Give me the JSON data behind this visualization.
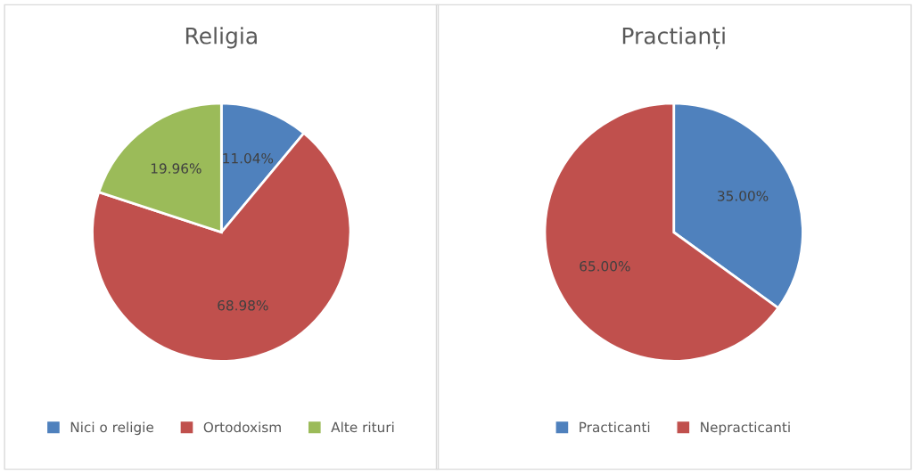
{
  "chart_data": [
    {
      "type": "pie",
      "title": "Religia",
      "categories": [
        "Nici o religie",
        "Ortodoxism",
        "Alte rituri"
      ],
      "values": [
        11.04,
        68.98,
        19.96
      ],
      "colors": [
        "#4f81bd",
        "#c0504d",
        "#9bbb59"
      ],
      "value_labels": [
        "11.04%",
        "68.98%",
        "19.96%"
      ],
      "legend": "bottom"
    },
    {
      "type": "pie",
      "title": "Practianți",
      "categories": [
        "Practicanti",
        "Nepracticanti"
      ],
      "values": [
        35,
        65
      ],
      "colors": [
        "#4f81bd",
        "#c0504d"
      ],
      "value_labels": [
        "35.00%",
        "65.00%"
      ],
      "legend": "bottom"
    }
  ]
}
